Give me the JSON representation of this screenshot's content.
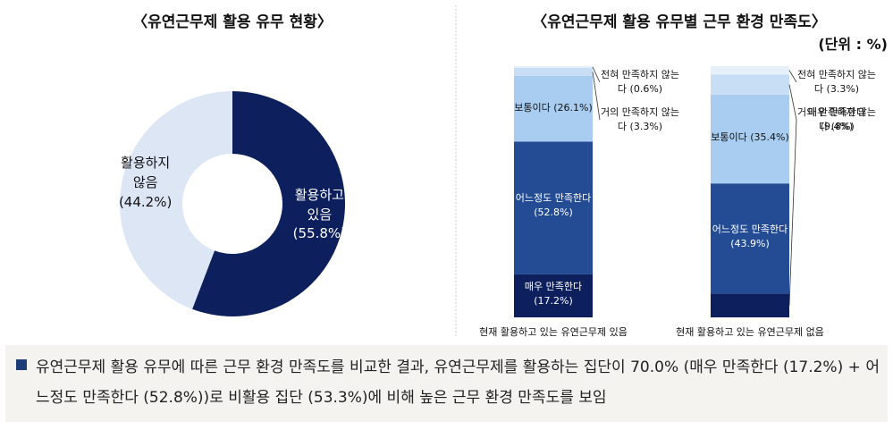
{
  "chart_data": [
    {
      "type": "pie",
      "donut": true,
      "title": "〈유연근무제 활용 유무 현황〉",
      "categories": [
        "활용하고 있음",
        "활용하지 않음"
      ],
      "values": [
        55.8,
        44.2
      ],
      "value_labels": [
        "(55.8%)",
        "(44.2%)"
      ],
      "colors": [
        "#0d1f5c",
        "#dde6f5"
      ]
    },
    {
      "type": "bar",
      "stacked": true,
      "title": "〈유연근무제 활용 유무별 근무 환경 만족도〉",
      "subtitle": "(단위 : %)",
      "categories": [
        "현재 활용하고 있는 유연근무제 있음",
        "현재 활용하고 있는 유연근무제 없음"
      ],
      "ylim": [
        0,
        100
      ],
      "series": [
        {
          "name": "매우 만족한다",
          "color": "#0d1f5c",
          "values": [
            17.2,
            9.4
          ],
          "value_labels": [
            "(17.2%)",
            "(9.4%)"
          ]
        },
        {
          "name": "어느정도 만족한다",
          "color": "#244c94",
          "values": [
            52.8,
            43.9
          ],
          "value_labels": [
            "(52.8%)",
            "(43.9%)"
          ]
        },
        {
          "name": "보통이다",
          "color": "#a9cdf0",
          "values": [
            26.1,
            35.4
          ],
          "value_labels": [
            "(26.1%)",
            "(35.4%)"
          ]
        },
        {
          "name": "거의 만족하지 않는다",
          "color": "#c8def5",
          "values": [
            3.3,
            8
          ],
          "value_labels": [
            "(3.3%)",
            "(8%)"
          ]
        },
        {
          "name": "전혀 만족하지 않는다",
          "color": "#e6f0fb",
          "values": [
            0.6,
            3.3
          ],
          "value_labels": [
            "(0.6%)",
            "(3.3%)"
          ]
        }
      ]
    }
  ],
  "summary": {
    "text": "유연근무제 활용 유무에 따른 근무 환경 만족도를 비교한 결과, 유연근무제를 활용하는 집단이 70.0% (매우 만족한다 (17.2%) + 어느정도 만족한다 (52.8%))로 비활용 집단 (53.3%)에 비해 높은 근무 환경 만족도를 보임"
  }
}
